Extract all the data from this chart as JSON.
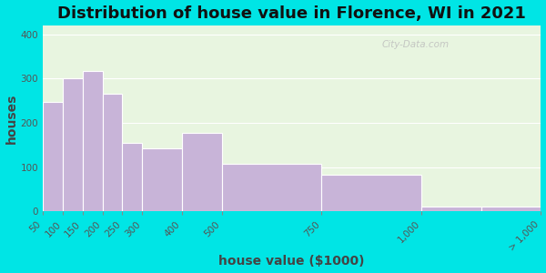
{
  "title": "Distribution of house value in Florence, WI in 2021",
  "xlabel": "house value ($1000)",
  "ylabel": "houses",
  "bin_edges": [
    50,
    100,
    150,
    200,
    250,
    300,
    400,
    500,
    750,
    1000,
    1150,
    1300
  ],
  "bar_values": [
    248,
    300,
    318,
    265,
    155,
    143,
    178,
    108,
    83,
    10,
    10
  ],
  "tick_positions": [
    50,
    100,
    150,
    200,
    250,
    300,
    400,
    500,
    750,
    1000,
    1300
  ],
  "tick_labels": [
    "50",
    "100",
    "150",
    "200",
    "250",
    "300",
    "400",
    "500",
    "750",
    "1,000",
    "> 1,000"
  ],
  "bar_color": "#c8b4d8",
  "bar_edge_color": "#ffffff",
  "ylim": [
    0,
    420
  ],
  "yticks": [
    0,
    100,
    200,
    300,
    400
  ],
  "background_outer": "#00e5e5",
  "background_inner": "#e8f5e0",
  "title_fontsize": 13,
  "axis_label_fontsize": 10,
  "tick_fontsize": 7.5,
  "watermark": "City-Data.com"
}
